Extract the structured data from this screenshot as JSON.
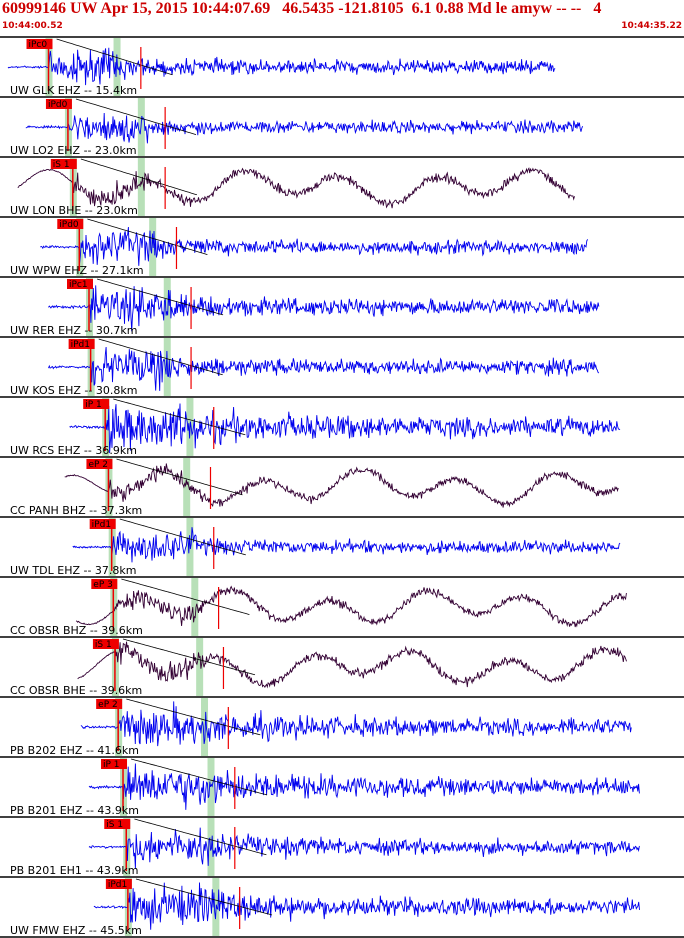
{
  "header": {
    "title": "60999146 UW Apr 15, 2015 10:44:07.69   46.5435 -121.8105  6.1 0.88 Md le amyw -- --   4",
    "time_start": "10:44:00.52",
    "time_end": "10:44:35.22"
  },
  "colors": {
    "header": "#cc0000",
    "short_period": "#0000ee",
    "broadband": "#330033",
    "pick_flag": "#ee0000",
    "window": "#b8e0b8"
  },
  "chart_data": {
    "type": "seismogram",
    "time_axis": {
      "start": "10:44:00.52",
      "end": "10:44:35.22"
    },
    "traces": [
      {
        "label": "UW GLK EHZ -- 15.4km",
        "kind": "sp",
        "pick": "iPc0",
        "amp": 0.55,
        "lowfreq": false,
        "p": 2.5,
        "s": 4.2,
        "dur": 10,
        "start": 0.0,
        "end": 33.8
      },
      {
        "label": "UW LO2 EHZ -- 23.0km",
        "kind": "sp",
        "pick": "iPd0",
        "amp": 0.5,
        "lowfreq": false,
        "p": 3.7,
        "s": 5.7,
        "dur": 8,
        "start": 1.1,
        "end": 35.5
      },
      {
        "label": "UW LON BHE -- 23.0km",
        "kind": "bb",
        "pick": "iS 1",
        "amp": 0.75,
        "lowfreq": true,
        "p": 4.0,
        "s": 5.7,
        "dur": 6,
        "start": 0.6,
        "end": 35.0
      },
      {
        "label": "UW WPW EHZ -- 27.1km",
        "kind": "sp",
        "pick": "iPd0",
        "amp": 0.55,
        "lowfreq": false,
        "p": 4.4,
        "s": 6.4,
        "dur": 10,
        "start": 2.0,
        "end": 35.8
      },
      {
        "label": "UW RER EHZ -- 30.7km",
        "kind": "sp",
        "pick": "iPc1",
        "amp": 0.65,
        "lowfreq": false,
        "p": 5.0,
        "s": 7.3,
        "dur": 12,
        "start": 2.5,
        "end": 36.5
      },
      {
        "label": "UW KOS EHZ -- 30.8km",
        "kind": "sp",
        "pick": "iPd1",
        "amp": 0.6,
        "lowfreq": false,
        "p": 5.1,
        "s": 7.3,
        "dur": 12,
        "start": 2.5,
        "end": 36.5
      },
      {
        "label": "UW RCS EHZ -- 36.9km",
        "kind": "sp",
        "pick": "iP 1",
        "amp": 0.7,
        "lowfreq": false,
        "p": 6.0,
        "s": 8.7,
        "dur": 25,
        "start": 3.8,
        "end": 37.8
      },
      {
        "label": "CC PANH BHZ -- 37.3km",
        "kind": "bb",
        "pick": "eP 2",
        "amp": 0.6,
        "lowfreq": true,
        "p": 6.2,
        "s": 8.5,
        "dur": 12,
        "start": 3.5,
        "end": 37.7
      },
      {
        "label": "UW TDL EHZ -- 37.8km",
        "kind": "sp",
        "pick": "iPd1",
        "amp": 0.5,
        "lowfreq": false,
        "p": 6.4,
        "s": 8.7,
        "dur": 12,
        "start": 4.0,
        "end": 37.8
      },
      {
        "label": "CC OBSR BHZ -- 39.6km",
        "kind": "bb",
        "pick": "eP 3",
        "amp": 0.65,
        "lowfreq": true,
        "p": 6.5,
        "s": 9.0,
        "dur": 10,
        "start": 4.2,
        "end": 38.2
      },
      {
        "label": "CC OBSR BHE -- 39.6km",
        "kind": "bb",
        "pick": "iS 1",
        "amp": 0.75,
        "lowfreq": true,
        "p": 6.6,
        "s": 9.3,
        "dur": 8,
        "start": 4.3,
        "end": 38.2
      },
      {
        "label": "PB B202 EHZ -- 41.6km",
        "kind": "sp",
        "pick": "eP 2",
        "amp": 0.6,
        "lowfreq": false,
        "p": 6.8,
        "s": 9.6,
        "dur": 25,
        "start": 4.5,
        "end": 38.5
      },
      {
        "label": "PB B201 EHZ -- 43.9km",
        "kind": "sp",
        "pick": "iP 1",
        "amp": 0.65,
        "lowfreq": false,
        "p": 7.1,
        "s": 10.0,
        "dur": 25,
        "start": 5.0,
        "end": 39.0
      },
      {
        "label": "PB B201 EH1 -- 43.9km",
        "kind": "sp",
        "pick": "iS 1",
        "amp": 0.55,
        "lowfreq": false,
        "p": 7.3,
        "s": 10.0,
        "dur": 20,
        "start": 5.0,
        "end": 39.0
      },
      {
        "label": "UW FMW EHZ -- 45.5km",
        "kind": "sp",
        "pick": "iPd1",
        "amp": 0.65,
        "lowfreq": false,
        "p": 7.4,
        "s": 10.3,
        "dur": 20,
        "start": 5.3,
        "end": 39.0
      }
    ]
  }
}
